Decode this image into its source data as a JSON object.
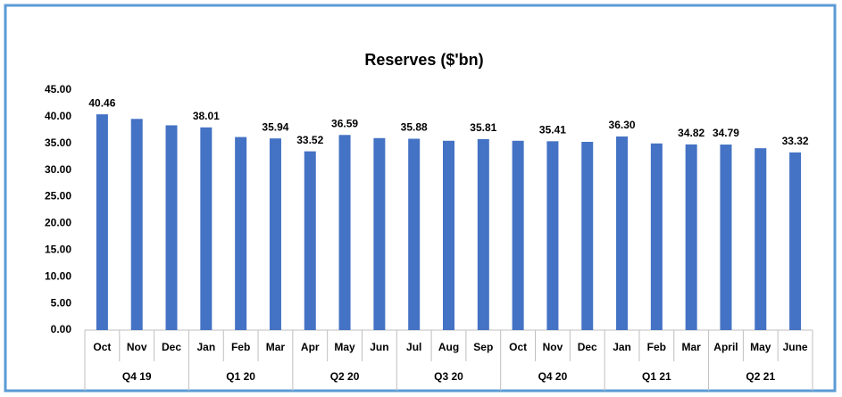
{
  "chart_data": {
    "type": "bar",
    "title": "Reserves ($'bn)",
    "categories": [
      "Oct",
      "Nov",
      "Dec",
      "Jan",
      "Feb",
      "Mar",
      "Apr",
      "May",
      "Jun",
      "Jul",
      "Aug",
      "Sep",
      "Oct",
      "Nov",
      "Dec",
      "Jan",
      "Feb",
      "Mar",
      "April",
      "May",
      "June"
    ],
    "category_groups": [
      "Q4 19",
      "Q1 20",
      "Q2 20",
      "Q3 20",
      "Q4 20",
      "Q1 21",
      "Q2 21"
    ],
    "values": [
      40.46,
      39.6,
      38.4,
      38.01,
      36.2,
      35.94,
      33.52,
      36.59,
      36.0,
      35.88,
      35.5,
      35.81,
      35.5,
      35.41,
      35.3,
      36.3,
      35.0,
      34.82,
      34.79,
      34.1,
      33.32
    ],
    "value_labels": [
      "40.46",
      null,
      null,
      "38.01",
      null,
      "35.94",
      "33.52",
      "36.59",
      null,
      "35.88",
      null,
      "35.81",
      null,
      "35.41",
      null,
      "36.30",
      null,
      "34.82",
      "34.79",
      null,
      "33.32"
    ],
    "color": "#4472c4",
    "ylim": [
      0,
      45
    ],
    "yticks": [
      {
        "value": 0,
        "label": "0.00"
      },
      {
        "value": 5,
        "label": "5.00"
      },
      {
        "value": 10,
        "label": "10.00"
      },
      {
        "value": 15,
        "label": "15.00"
      },
      {
        "value": 20,
        "label": "20.00"
      },
      {
        "value": 25,
        "label": "25.00"
      },
      {
        "value": 30,
        "label": "30.00"
      },
      {
        "value": 35,
        "label": "35.00"
      },
      {
        "value": 40,
        "label": "40.00"
      },
      {
        "value": 45,
        "label": "45.00"
      }
    ],
    "grid": false
  }
}
